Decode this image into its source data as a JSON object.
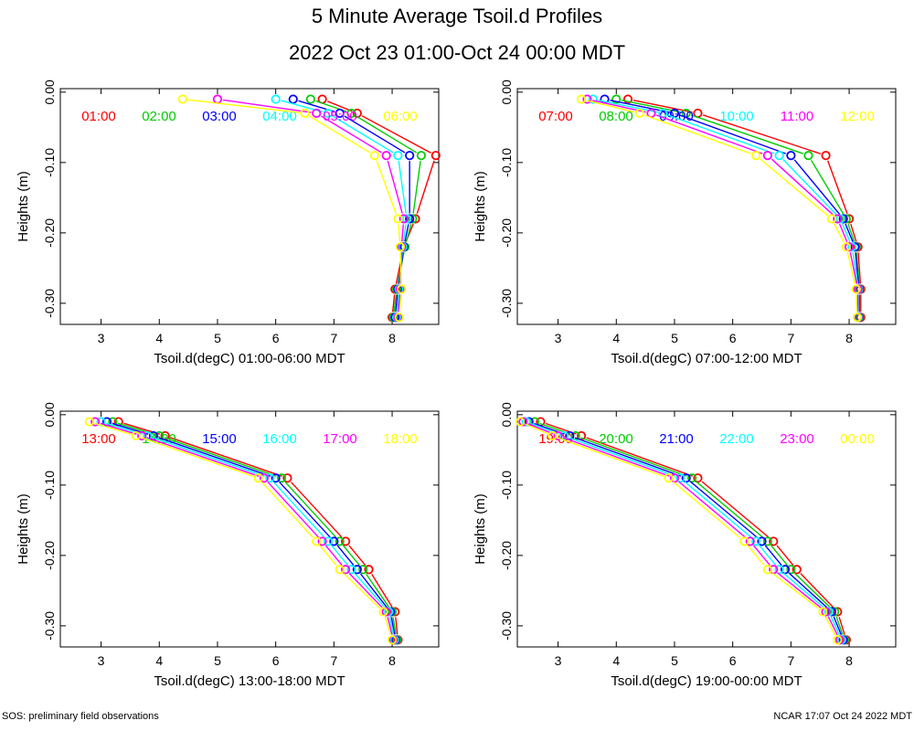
{
  "title": "5 Minute Average Tsoil.d Profiles",
  "subtitle": "2022 Oct 23 01:00-Oct 24 00:00 MDT",
  "footer_left": "SOS: preliminary field observations",
  "footer_right": "NCAR 17:07 Oct 24 2022 MDT",
  "chart_data": [
    {
      "type": "line",
      "title": "Tsoil.d 01:00-06:00",
      "xlabel": "Tsoil.d(degC) 01:00-06:00 MDT",
      "ylabel": "Heights (m)",
      "xlim": [
        2.3,
        8.8
      ],
      "ylim": [
        -0.33,
        0.005
      ],
      "xticks": [
        "3",
        "4",
        "5",
        "6",
        "7",
        "8"
      ],
      "yticks": [
        "0.00",
        "-0.10",
        "-0.20",
        "-0.30"
      ],
      "heights": [
        -0.01,
        -0.03,
        -0.09,
        -0.18,
        -0.22,
        -0.28,
        -0.32
      ],
      "series": [
        {
          "name": "01:00",
          "color": "#ff0000",
          "values": [
            6.8,
            7.4,
            8.75,
            8.4,
            8.2,
            8.05,
            8.0
          ]
        },
        {
          "name": "02:00",
          "color": "#00cc00",
          "values": [
            6.6,
            7.3,
            8.5,
            8.35,
            8.22,
            8.08,
            8.02
          ]
        },
        {
          "name": "03:00",
          "color": "#0000ff",
          "values": [
            6.3,
            7.1,
            8.3,
            8.3,
            8.2,
            8.1,
            8.05
          ]
        },
        {
          "name": "04:00",
          "color": "#00ffff",
          "values": [
            6.0,
            6.9,
            8.1,
            8.25,
            8.18,
            8.12,
            8.08
          ]
        },
        {
          "name": "05:00",
          "color": "#ff00ff",
          "values": [
            5.0,
            6.7,
            7.9,
            8.2,
            8.16,
            8.14,
            8.1
          ]
        },
        {
          "name": "06:00",
          "color": "#ffff00",
          "values": [
            4.4,
            6.5,
            7.7,
            8.1,
            8.14,
            8.16,
            8.12
          ]
        }
      ]
    },
    {
      "type": "line",
      "title": "Tsoil.d 07:00-12:00",
      "xlabel": "Tsoil.d(degC) 07:00-12:00 MDT",
      "ylabel": "Heights (m)",
      "xlim": [
        2.3,
        8.8
      ],
      "ylim": [
        -0.33,
        0.005
      ],
      "xticks": [
        "3",
        "4",
        "5",
        "6",
        "7",
        "8"
      ],
      "yticks": [
        "0.00",
        "-0.10",
        "-0.20",
        "-0.30"
      ],
      "heights": [
        -0.01,
        -0.03,
        -0.09,
        -0.18,
        -0.22,
        -0.28,
        -0.32
      ],
      "series": [
        {
          "name": "07:00",
          "color": "#ff0000",
          "values": [
            4.2,
            5.4,
            7.6,
            8.0,
            8.15,
            8.2,
            8.2
          ]
        },
        {
          "name": "08:00",
          "color": "#00cc00",
          "values": [
            4.0,
            5.2,
            7.3,
            7.95,
            8.12,
            8.18,
            8.18
          ]
        },
        {
          "name": "09:00",
          "color": "#0000ff",
          "values": [
            3.8,
            5.0,
            7.0,
            7.9,
            8.1,
            8.17,
            8.17
          ]
        },
        {
          "name": "10:00",
          "color": "#00ffff",
          "values": [
            3.6,
            4.8,
            6.8,
            7.85,
            8.05,
            8.16,
            8.16
          ]
        },
        {
          "name": "11:00",
          "color": "#ff00ff",
          "values": [
            3.5,
            4.6,
            6.6,
            7.8,
            8.0,
            8.15,
            8.15
          ]
        },
        {
          "name": "12:00",
          "color": "#ffff00",
          "values": [
            3.4,
            4.4,
            6.4,
            7.7,
            7.95,
            8.12,
            8.14
          ]
        }
      ]
    },
    {
      "type": "line",
      "title": "Tsoil.d 13:00-18:00",
      "xlabel": "Tsoil.d(degC) 13:00-18:00 MDT",
      "ylabel": "Heights (m)",
      "xlim": [
        2.3,
        8.8
      ],
      "ylim": [
        -0.33,
        0.005
      ],
      "xticks": [
        "3",
        "4",
        "5",
        "6",
        "7",
        "8"
      ],
      "yticks": [
        "0.00",
        "-0.10",
        "-0.20",
        "-0.30"
      ],
      "heights": [
        -0.01,
        -0.03,
        -0.09,
        -0.18,
        -0.22,
        -0.28,
        -0.32
      ],
      "series": [
        {
          "name": "13:00",
          "color": "#ff0000",
          "values": [
            3.3,
            4.1,
            6.2,
            7.2,
            7.6,
            8.05,
            8.1
          ]
        },
        {
          "name": "14:00",
          "color": "#00cc00",
          "values": [
            3.2,
            4.0,
            6.1,
            7.1,
            7.5,
            8.0,
            8.08
          ]
        },
        {
          "name": "15:00",
          "color": "#0000ff",
          "values": [
            3.1,
            3.9,
            6.0,
            7.0,
            7.4,
            7.97,
            8.06
          ]
        },
        {
          "name": "16:00",
          "color": "#00ffff",
          "values": [
            3.0,
            3.8,
            5.9,
            6.9,
            7.3,
            7.94,
            8.04
          ]
        },
        {
          "name": "17:00",
          "color": "#ff00ff",
          "values": [
            2.9,
            3.7,
            5.8,
            6.8,
            7.2,
            7.9,
            8.02
          ]
        },
        {
          "name": "18:00",
          "color": "#ffff00",
          "values": [
            2.8,
            3.6,
            5.7,
            6.7,
            7.1,
            7.85,
            8.0
          ]
        }
      ]
    },
    {
      "type": "line",
      "title": "Tsoil.d 19:00-00:00",
      "xlabel": "Tsoil.d(degC) 19:00-00:00 MDT",
      "ylabel": "Heights (m)",
      "xlim": [
        2.3,
        8.8
      ],
      "ylim": [
        -0.33,
        0.005
      ],
      "xticks": [
        "3",
        "4",
        "5",
        "6",
        "7",
        "8"
      ],
      "yticks": [
        "0.00",
        "-0.10",
        "-0.20",
        "-0.30"
      ],
      "heights": [
        -0.01,
        -0.03,
        -0.09,
        -0.18,
        -0.22,
        -0.28,
        -0.32
      ],
      "series": [
        {
          "name": "19:00",
          "color": "#ff0000",
          "values": [
            2.7,
            3.4,
            5.4,
            6.7,
            7.1,
            7.8,
            7.95
          ]
        },
        {
          "name": "20:00",
          "color": "#00cc00",
          "values": [
            2.6,
            3.3,
            5.3,
            6.6,
            7.0,
            7.75,
            7.92
          ]
        },
        {
          "name": "21:00",
          "color": "#0000ff",
          "values": [
            2.5,
            3.2,
            5.2,
            6.5,
            6.9,
            7.7,
            7.9
          ]
        },
        {
          "name": "22:00",
          "color": "#00ffff",
          "values": [
            2.45,
            3.1,
            5.1,
            6.4,
            6.8,
            7.65,
            7.87
          ]
        },
        {
          "name": "23:00",
          "color": "#ff00ff",
          "values": [
            2.4,
            3.0,
            5.0,
            6.3,
            6.7,
            7.6,
            7.84
          ]
        },
        {
          "name": "00:00",
          "color": "#ffff00",
          "values": [
            2.35,
            2.9,
            4.9,
            6.2,
            6.6,
            7.55,
            7.8
          ]
        }
      ]
    }
  ]
}
